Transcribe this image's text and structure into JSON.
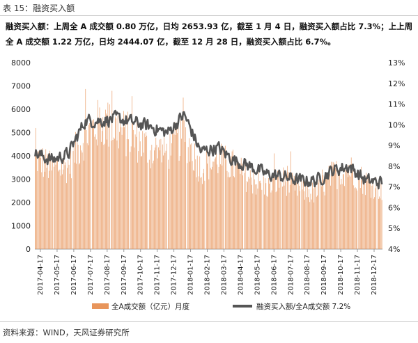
{
  "header": {
    "title": "表 15：融资买入额"
  },
  "summary": "融资买入额：上周全 A 成交额 0.80 万亿，日均 2653.93 亿，截至 1 月 4 日，融资买入额占比 7.3%；上上周全 A 成交额 1.22 万亿，日均 2444.07 亿，截至 12 月 28 日，融资买入额占比 6.7%。",
  "footer": {
    "source": "资料来源：WIND，天风证券研究所"
  },
  "chart_data": {
    "type": "bar+line",
    "x_tick_labels": [
      "2017-04-17",
      "2017-05-17",
      "2017-06-17",
      "2017-07-17",
      "2017-08-17",
      "2017-09-17",
      "2017-10-17",
      "2017-11-17",
      "2017-12-17",
      "2018-01-17",
      "2018-02-17",
      "2018-03-17",
      "2018-04-17",
      "2018-05-17",
      "2018-06-17",
      "2018-07-17",
      "2018-08-17",
      "2018-09-17",
      "2018-10-17",
      "2018-11-17",
      "2018-12-17"
    ],
    "y_left": {
      "min": 0,
      "max": 8000,
      "ticks": [
        "0",
        "1000",
        "2000",
        "3000",
        "4000",
        "5000",
        "6000",
        "7000",
        "8000"
      ]
    },
    "y_right": {
      "min": 4,
      "max": 13,
      "ticks": [
        "4%",
        "5%",
        "6%",
        "7%",
        "8%",
        "9%",
        "10%",
        "11%",
        "12%",
        "13%"
      ]
    },
    "bar_series": {
      "name": "全A成交额（亿元）月度",
      "color": "#e8955b",
      "monthly_levels": [
        4000,
        3500,
        3600,
        4900,
        5500,
        5200,
        4800,
        4300,
        4200,
        5000,
        3500,
        3900,
        3600,
        3000,
        2700,
        3000,
        2600,
        2400,
        3200,
        3500,
        2900,
        2600
      ]
    },
    "line_series": {
      "name": "融资买入额/全A成交额 7.2%",
      "color": "#555555",
      "monthly_levels": [
        8.6,
        8.3,
        8.6,
        10.2,
        10.2,
        10.3,
        10.1,
        9.9,
        9.6,
        10.5,
        8.7,
        8.9,
        8.3,
        8.0,
        7.6,
        7.5,
        7.3,
        7.3,
        7.8,
        8.0,
        7.3,
        7.2
      ]
    }
  }
}
